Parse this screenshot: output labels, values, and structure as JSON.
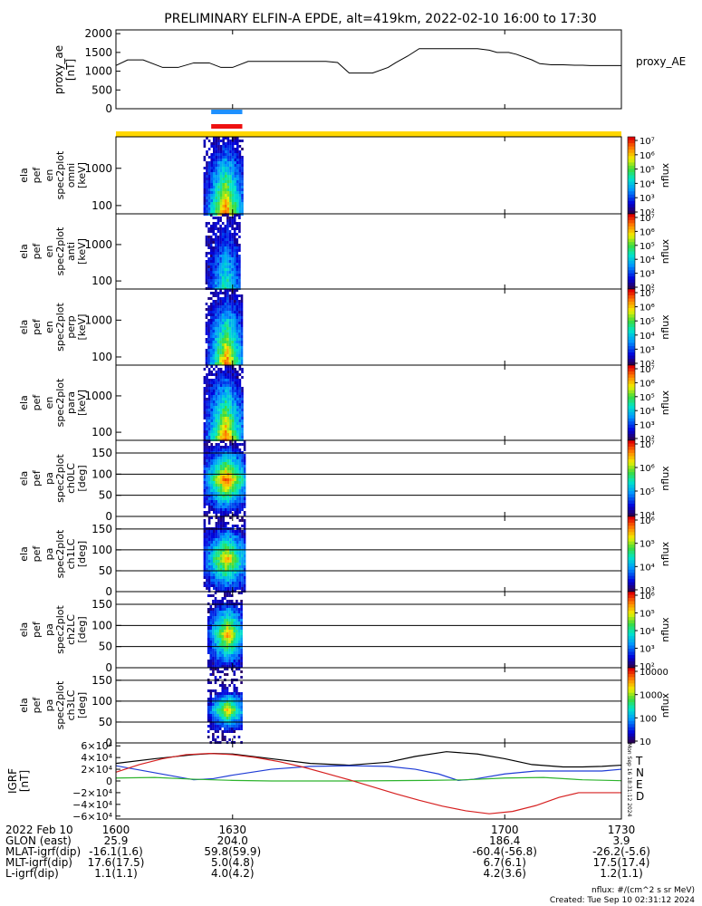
{
  "title": "PRELIMINARY ELFIN-A EPDE, alt=419km, 2022-02-10 16:00 to 17:30",
  "colors": {
    "ae_line": "#000000",
    "bar_blue": "#1e90ff",
    "bar_red": "#ee1111",
    "sun_bar": "#ffd700",
    "grf_T": "#000000",
    "grf_N": "#1f3cd6",
    "grf_E": "#2db32d",
    "grf_D": "#d62020"
  },
  "chart_data": [
    {
      "type": "line",
      "name": "proxy_ae",
      "ylabel": [
        "proxy_ae",
        "[nT]"
      ],
      "legend": "proxy_AE",
      "ylim": [
        0,
        2100
      ],
      "yticks": [
        "2000",
        "1500",
        "1000",
        "500",
        "0"
      ],
      "ytick_values": [
        2000,
        1500,
        1000,
        500,
        0
      ],
      "series": [
        {
          "name": "proxy_AE",
          "x": [
            1600,
            1603,
            1607,
            1612,
            1616,
            1620,
            1624,
            1627,
            1630,
            1634,
            1638,
            1642,
            1646,
            1650,
            1654,
            1657,
            1660,
            1662,
            1664,
            1666,
            1670,
            1672,
            1675,
            1678,
            1681,
            1684,
            1686,
            1690,
            1693,
            1696,
            1698,
            1701,
            1703,
            1707,
            1709,
            1712,
            1715,
            1718,
            1720,
            1722,
            1726,
            1730
          ],
          "y": [
            1150,
            1300,
            1300,
            1100,
            1100,
            1220,
            1220,
            1100,
            1100,
            1260,
            1260,
            1260,
            1260,
            1260,
            1260,
            1230,
            950,
            950,
            950,
            950,
            1100,
            1230,
            1400,
            1600,
            1600,
            1600,
            1600,
            1600,
            1600,
            1560,
            1500,
            1500,
            1450,
            1300,
            1200,
            1170,
            1170,
            1160,
            1160,
            1150,
            1150,
            1150
          ]
        }
      ]
    },
    {
      "type": "heatmap",
      "name": "ela_pef_en_spec2plot_omni",
      "ylabel": [
        "ela",
        "pef",
        "en",
        "spec2plot",
        "omni",
        "[keV]"
      ],
      "yscale": "log",
      "ylim": [
        60,
        7000
      ],
      "yticks": [
        "1000",
        "100"
      ],
      "ytick_values": [
        1000,
        100
      ],
      "colorbar": {
        "label": "nflux",
        "scale": "log",
        "range": [
          2,
          7
        ],
        "ticks": [
          "10⁷",
          "10⁶",
          "10⁵",
          "10⁴",
          "10³",
          "10²"
        ]
      },
      "time_range": [
        1622.5,
        1632.5
      ]
    },
    {
      "type": "heatmap",
      "name": "ela_pef_en_spec2plot_anti",
      "ylabel": [
        "ela",
        "pef",
        "en",
        "spec2plot",
        "anti",
        "[keV]"
      ],
      "yscale": "log",
      "ylim": [
        60,
        7000
      ],
      "yticks": [
        "1000",
        "100"
      ],
      "ytick_values": [
        1000,
        100
      ],
      "colorbar": {
        "label": "nflux",
        "scale": "log",
        "range": [
          2,
          7
        ],
        "ticks": [
          "10⁷",
          "10⁶",
          "10⁵",
          "10⁴",
          "10³",
          "10²"
        ]
      },
      "time_range": [
        1623,
        1632
      ]
    },
    {
      "type": "heatmap",
      "name": "ela_pef_en_spec2plot_perp",
      "ylabel": [
        "ela",
        "pef",
        "en",
        "spec2plot",
        "perp",
        "[keV]"
      ],
      "yscale": "log",
      "ylim": [
        60,
        7000
      ],
      "yticks": [
        "1000",
        "100"
      ],
      "ytick_values": [
        1000,
        100
      ],
      "colorbar": {
        "label": "nflux",
        "scale": "log",
        "range": [
          2,
          7
        ],
        "ticks": [
          "10⁷",
          "10⁶",
          "10⁵",
          "10⁴",
          "10³",
          "10²"
        ]
      },
      "time_range": [
        1623,
        1632.5
      ]
    },
    {
      "type": "heatmap",
      "name": "ela_pef_en_spec2plot_para",
      "ylabel": [
        "ela",
        "pef",
        "en",
        "spec2plot",
        "para",
        "[keV]"
      ],
      "yscale": "log",
      "ylim": [
        60,
        7000
      ],
      "yticks": [
        "1000",
        "100"
      ],
      "ytick_values": [
        1000,
        100
      ],
      "colorbar": {
        "label": "nflux",
        "scale": "log",
        "range": [
          2,
          7
        ],
        "ticks": [
          "10⁷",
          "10⁶",
          "10⁵",
          "10⁴",
          "10³",
          "10²"
        ]
      },
      "time_range": [
        1622.5,
        1632.5
      ]
    },
    {
      "type": "heatmap",
      "name": "ela_pef_pa_spec2plot_ch0LC",
      "ylabel": [
        "ela",
        "pef",
        "pa",
        "spec2plot",
        "ch0LC",
        "[deg]"
      ],
      "ylim": [
        0,
        180
      ],
      "yticks": [
        "150",
        "100",
        "50",
        "0"
      ],
      "ytick_values": [
        150,
        100,
        50,
        0
      ],
      "colorbar": {
        "label": "nflux",
        "scale": "log",
        "range": [
          3.5,
          7
        ],
        "ticks": [
          "10⁷",
          "10⁶",
          "10⁵",
          "10⁴"
        ]
      },
      "time_range": [
        1622.5,
        1633
      ]
    },
    {
      "type": "heatmap",
      "name": "ela_pef_pa_spec2plot_ch1LC",
      "ylabel": [
        "ela",
        "pef",
        "pa",
        "spec2plot",
        "ch1LC",
        "[deg]"
      ],
      "ylim": [
        0,
        180
      ],
      "yticks": [
        "150",
        "100",
        "50",
        "0"
      ],
      "ytick_values": [
        150,
        100,
        50,
        0
      ],
      "colorbar": {
        "label": "nflux",
        "scale": "log",
        "range": [
          2.8,
          6.6
        ],
        "ticks": [
          "10⁶",
          "10⁵",
          "10⁴",
          "10³"
        ]
      },
      "time_range": [
        1622.5,
        1633
      ]
    },
    {
      "type": "heatmap",
      "name": "ela_pef_pa_spec2plot_ch2LC",
      "ylabel": [
        "ela",
        "pef",
        "pa",
        "spec2plot",
        "ch2LC",
        "[deg]"
      ],
      "ylim": [
        0,
        180
      ],
      "yticks": [
        "150",
        "100",
        "50",
        "0"
      ],
      "ytick_values": [
        150,
        100,
        50,
        0
      ],
      "colorbar": {
        "label": "nflux",
        "scale": "log",
        "range": [
          1.9,
          6.2
        ],
        "ticks": [
          "10⁶",
          "10⁵",
          "10⁴",
          "10³",
          "10²"
        ]
      },
      "time_range": [
        1623.5,
        1632.5
      ]
    },
    {
      "type": "heatmap",
      "name": "ela_pef_pa_spec2plot_ch3LC",
      "ylabel": [
        "ela",
        "pef",
        "pa",
        "spec2plot",
        "ch3LC",
        "[deg]"
      ],
      "ylim": [
        0,
        180
      ],
      "yticks": [
        "150",
        "100",
        "50",
        "0"
      ],
      "ytick_values": [
        150,
        100,
        50,
        0
      ],
      "colorbar": {
        "label": "nflux",
        "scale": "log",
        "range": [
          1,
          4.6
        ],
        "ticks": [
          "10000",
          "1000",
          "100",
          "10"
        ]
      },
      "time_range": [
        1623.5,
        1632.5
      ]
    },
    {
      "type": "line",
      "name": "IGRF",
      "ylabel": [
        "IGRF",
        "[nT]"
      ],
      "ylim": [
        -65000,
        65000
      ],
      "yticks": [
        "6×10⁴",
        "4×10⁴",
        "2×10⁴",
        "0",
        "−2×10⁴",
        "−4×10⁴",
        "−6×10⁴"
      ],
      "ytick_values": [
        60000,
        40000,
        20000,
        0,
        -20000,
        -40000,
        -60000
      ],
      "series": [
        {
          "name": "T",
          "x": [
            1600,
            1610,
            1620,
            1625,
            1630,
            1640,
            1650,
            1660,
            1670,
            1677,
            1685,
            1693,
            1700,
            1707,
            1715,
            1720,
            1725,
            1730
          ],
          "y": [
            30000,
            38000,
            45000,
            47000,
            46000,
            38000,
            30000,
            27000,
            32000,
            42000,
            50000,
            46000,
            38000,
            28000,
            24000,
            24000,
            25000,
            27000
          ]
        },
        {
          "name": "N",
          "x": [
            1600,
            1610,
            1620,
            1625,
            1630,
            1640,
            1650,
            1660,
            1670,
            1677,
            1683,
            1688,
            1692,
            1700,
            1708,
            1715,
            1725,
            1730
          ],
          "y": [
            26000,
            14000,
            2000,
            4000,
            10000,
            20000,
            25000,
            26000,
            25000,
            20000,
            12000,
            1000,
            3000,
            12000,
            17000,
            17000,
            17000,
            20000
          ]
        },
        {
          "name": "E",
          "x": [
            1600,
            1610,
            1620,
            1630,
            1640,
            1660,
            1680,
            1690,
            1700,
            1710,
            1720,
            1730
          ],
          "y": [
            5000,
            6000,
            3000,
            1000,
            0,
            0,
            1000,
            2000,
            5000,
            6000,
            2000,
            500
          ]
        },
        {
          "name": "D",
          "x": [
            1600,
            1606,
            1612,
            1618,
            1624,
            1630,
            1636,
            1642,
            1648,
            1654,
            1660,
            1666,
            1672,
            1678,
            1684,
            1690,
            1696,
            1702,
            1708,
            1714,
            1719,
            1724,
            1730
          ],
          "y": [
            15000,
            28000,
            38000,
            45000,
            47000,
            45000,
            40000,
            33000,
            24000,
            13000,
            2000,
            -10000,
            -22000,
            -33000,
            -43000,
            -51000,
            -56000,
            -52000,
            -42000,
            -28000,
            -20000,
            -20000,
            -20000
          ]
        }
      ]
    }
  ],
  "time_axis": {
    "xlim": [
      1600,
      1730
    ],
    "ticks": [
      "1600",
      "1630",
      "1700",
      "1730"
    ],
    "tick_values": [
      1600,
      1630,
      1700,
      1730
    ]
  },
  "grf_legend": [
    "T",
    "N",
    "E",
    "D"
  ],
  "side_label": "Mon Sep 16 18:31:12 2024",
  "event_bars": {
    "x_range": [
      1624.5,
      1632.5
    ],
    "sun_bar": true
  },
  "footer": {
    "rows": [
      {
        "label": "2022 Feb 10",
        "values": [
          "1600",
          "1630",
          "1700",
          "1730"
        ]
      },
      {
        "label": "GLON (east)",
        "values": [
          "25.9",
          "204.0",
          "186.4",
          "3.9"
        ]
      },
      {
        "label": "MLAT-igrf(dip)",
        "values": [
          "-16.1(1.6)",
          "59.8(59.9)",
          "-60.4(-56.8)",
          "-26.2(-5.6)"
        ]
      },
      {
        "label": "MLT-igrf(dip)",
        "values": [
          "17.6(17.5)",
          "5.0(4.8)",
          "6.7(6.1)",
          "17.5(17.4)"
        ]
      },
      {
        "label": "L-igrf(dip)",
        "values": [
          "1.1(1.1)",
          "4.0(4.2)",
          "4.2(3.6)",
          "1.2(1.1)"
        ]
      }
    ],
    "units_note": "nflux: #/(cm^2 s sr MeV)",
    "created": "Created: Tue Sep 10 02:31:12 2024"
  }
}
